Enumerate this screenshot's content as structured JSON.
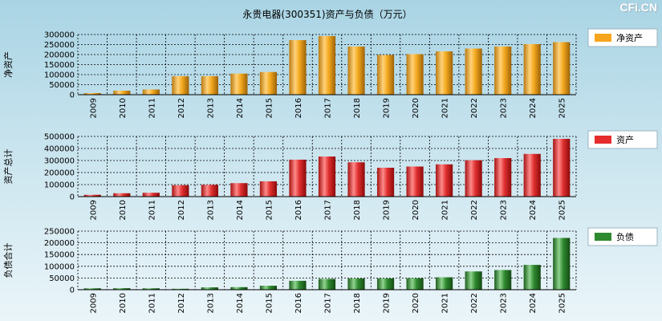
{
  "title": "永贵电器(300351)资产与负债（万元）",
  "watermark": "CFi.CN",
  "colors": {
    "net_assets": "#f7a51c",
    "total_assets": "#e62c2c",
    "liabilities": "#2f8a2f",
    "grid": "#000000",
    "legend_bg": "#ffffff"
  },
  "chart_data": [
    {
      "type": "bar",
      "ylabel": "净资产",
      "legend": "净资产",
      "legend_icon": "orange-swatch-icon",
      "ylim": [
        0,
        300000
      ],
      "yticks": [
        0,
        50000,
        100000,
        150000,
        200000,
        250000,
        300000
      ],
      "categories": [
        "2009",
        "2010",
        "2011",
        "2012",
        "2013",
        "2014",
        "2015",
        "2016",
        "2017",
        "2018",
        "2019",
        "2020",
        "2021",
        "2022",
        "2023",
        "2024",
        "2025"
      ],
      "values": [
        8000,
        20000,
        26000,
        92000,
        92000,
        105000,
        113000,
        272000,
        292000,
        240000,
        198000,
        202000,
        216000,
        230000,
        240000,
        252000,
        262000
      ]
    },
    {
      "type": "bar",
      "ylabel": "资产总计",
      "legend": "资产",
      "legend_icon": "red-swatch-icon",
      "ylim": [
        0,
        500000
      ],
      "yticks": [
        0,
        100000,
        200000,
        300000,
        400000,
        500000
      ],
      "categories": [
        "2009",
        "2010",
        "2011",
        "2012",
        "2013",
        "2014",
        "2015",
        "2016",
        "2017",
        "2018",
        "2019",
        "2020",
        "2021",
        "2022",
        "2023",
        "2024",
        "2025"
      ],
      "values": [
        15000,
        28000,
        32000,
        95000,
        98000,
        112000,
        127000,
        307000,
        333000,
        285000,
        240000,
        250000,
        268000,
        302000,
        320000,
        355000,
        480000
      ]
    },
    {
      "type": "bar",
      "ylabel": "负债合计",
      "legend": "负债",
      "legend_icon": "green-swatch-icon",
      "ylim": [
        0,
        250000
      ],
      "yticks": [
        0,
        50000,
        100000,
        150000,
        200000,
        250000
      ],
      "categories": [
        "2009",
        "2010",
        "2011",
        "2012",
        "2013",
        "2014",
        "2015",
        "2016",
        "2017",
        "2018",
        "2019",
        "2020",
        "2021",
        "2022",
        "2023",
        "2024",
        "2025"
      ],
      "values": [
        6000,
        6500,
        6000,
        4000,
        10000,
        11000,
        17000,
        38000,
        46000,
        48000,
        48000,
        49000,
        53000,
        78000,
        84000,
        106000,
        221000
      ]
    }
  ]
}
